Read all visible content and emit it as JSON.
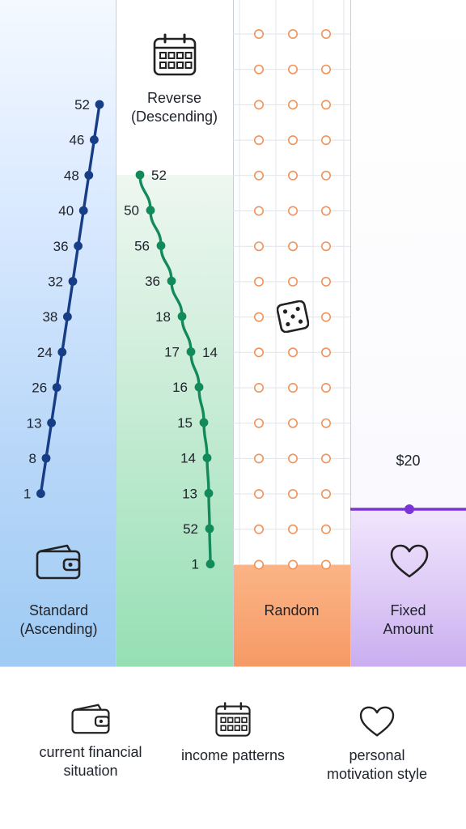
{
  "columns": {
    "standard": {
      "label_line1": "Standard",
      "label_line2": "(Ascending)",
      "values": [
        "52",
        "46",
        "48",
        "40",
        "36",
        "32",
        "38",
        "24",
        "26",
        "13",
        "8",
        "1"
      ],
      "color": "#163d86",
      "icon": "wallet-icon"
    },
    "reverse": {
      "label_line1": "Reverse",
      "label_line2": "(Descending)",
      "values": [
        "52",
        "50",
        "56",
        "36",
        "18",
        "17",
        "16",
        "15",
        "14",
        "13",
        "52",
        "1"
      ],
      "extra_label": "14",
      "color": "#138a5a",
      "icon": "calendar-icon"
    },
    "random": {
      "label": "Random",
      "dot_color": "#f0935a",
      "icon": "dice-icon"
    },
    "fixed": {
      "label_line1": "Fixed",
      "label_line2": "Amount",
      "amount": "$20",
      "color": "#7b34d6",
      "icon": "heart-icon"
    }
  },
  "footer": [
    {
      "icon": "wallet-icon",
      "line1": "current financial",
      "line2": "situation"
    },
    {
      "icon": "calendar-icon",
      "line1": "income patterns",
      "line2": ""
    },
    {
      "icon": "heart-icon",
      "line1": "personal",
      "line2": "motivation style"
    }
  ]
}
